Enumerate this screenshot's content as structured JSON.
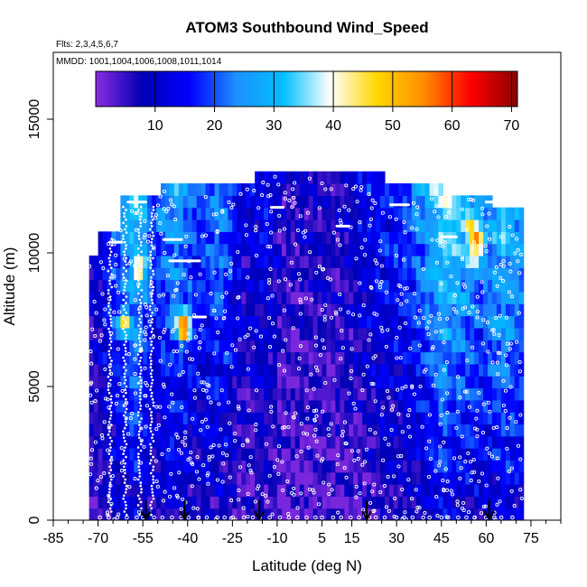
{
  "chart_data": {
    "type": "heatmap",
    "title": "ATOM3 Southbound Wind_Speed",
    "flights_label": "Flts: 2,3,4,5,6,7",
    "dates_label": "MMDD: 1001,1004,1006,1008,1011,1014",
    "xlabel": "Latitude (deg N)",
    "ylabel": "Altitude (m)",
    "xlim": [
      -85,
      85
    ],
    "ylim": [
      0,
      17500
    ],
    "x_ticks": [
      "-85",
      "-70",
      "-55",
      "-40",
      "-25",
      "-10",
      "5",
      "15",
      "30",
      "45",
      "60",
      "75"
    ],
    "x_tick_values": [
      -85,
      -70,
      -55,
      -40,
      -25,
      -10,
      5,
      15,
      30,
      45,
      60,
      75
    ],
    "y_ticks": [
      "0",
      "5000",
      "10000",
      "15000"
    ],
    "y_tick_values": [
      0,
      5000,
      10000,
      15000
    ],
    "colorbar": {
      "min": 0,
      "max": 71,
      "ticks": [
        "10",
        "20",
        "30",
        "40",
        "50",
        "60",
        "70"
      ],
      "tick_values": [
        10,
        20,
        30,
        40,
        50,
        60,
        70
      ],
      "colors": [
        "#8a2be2",
        "#0000b4",
        "#0000ff",
        "#1e90ff",
        "#00bfff",
        "#ffffff",
        "#ffd700",
        "#ff8c00",
        "#ff0000",
        "#8b0000"
      ]
    },
    "arrows_latitude": [
      -54,
      -41,
      -16,
      20,
      61
    ],
    "wind_profile_key_lats": [
      -72,
      -65,
      -58,
      -52,
      -45,
      -38,
      -30,
      -22,
      -15,
      -8,
      0,
      8,
      15,
      22,
      30,
      38,
      45,
      52,
      58,
      65,
      70
    ],
    "wind_profile_speed_ms": [
      8,
      18,
      25,
      16,
      22,
      14,
      20,
      8,
      12,
      5,
      6,
      6,
      8,
      12,
      14,
      20,
      28,
      24,
      20,
      26,
      22
    ],
    "hot_spots": [
      {
        "lat": -62,
        "alt": 7200,
        "speed": 48
      },
      {
        "lat": -57,
        "alt": 9200,
        "speed": 50
      },
      {
        "lat": -42,
        "alt": 6800,
        "speed": 55
      },
      {
        "lat": -42,
        "alt": 7300,
        "speed": 58
      },
      {
        "lat": 56,
        "alt": 10200,
        "speed": 62
      },
      {
        "lat": 54,
        "alt": 10800,
        "speed": 48
      },
      {
        "lat": 55,
        "alt": 9700,
        "speed": 45
      }
    ]
  }
}
